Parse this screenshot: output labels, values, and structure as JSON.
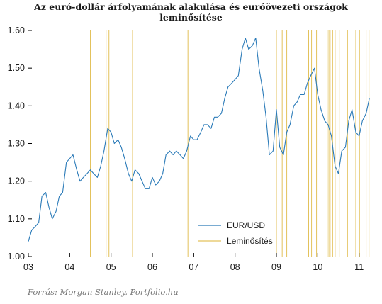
{
  "chart_data": {
    "type": "line",
    "title": "Az euró-dollár árfolyamának alakulása és euróövezeti országok leminősítése",
    "title_lines": [
      "Az euró-dollár árfolyamának alakulása és euróövezeti országok",
      "leminősítése"
    ],
    "source": "Forrás: Morgan Stanley, Portfolio.hu",
    "xlim": [
      2003.0,
      2011.4
    ],
    "ylim": [
      1.0,
      1.6
    ],
    "yticks": [
      "1.00",
      "1.10",
      "1.20",
      "1.30",
      "1.40",
      "1.50",
      "1.60"
    ],
    "ytick_values": [
      1.0,
      1.1,
      1.2,
      1.3,
      1.4,
      1.5,
      1.6
    ],
    "xticks": [
      "03",
      "04",
      "05",
      "06",
      "07",
      "08",
      "09",
      "10",
      "11"
    ],
    "xtick_values": [
      2003,
      2004,
      2005,
      2006,
      2007,
      2008,
      2009,
      2010,
      2011
    ],
    "grid": false,
    "legend_position": "bottom-center",
    "series": [
      {
        "name": "EUR/USD",
        "color": "#2a7ab8",
        "points": [
          [
            2003.0,
            1.04
          ],
          [
            2003.08,
            1.07
          ],
          [
            2003.17,
            1.08
          ],
          [
            2003.25,
            1.09
          ],
          [
            2003.33,
            1.16
          ],
          [
            2003.42,
            1.17
          ],
          [
            2003.5,
            1.13
          ],
          [
            2003.58,
            1.1
          ],
          [
            2003.67,
            1.12
          ],
          [
            2003.75,
            1.16
          ],
          [
            2003.83,
            1.17
          ],
          [
            2003.92,
            1.25
          ],
          [
            2004.0,
            1.26
          ],
          [
            2004.08,
            1.27
          ],
          [
            2004.17,
            1.23
          ],
          [
            2004.25,
            1.2
          ],
          [
            2004.33,
            1.21
          ],
          [
            2004.42,
            1.22
          ],
          [
            2004.5,
            1.23
          ],
          [
            2004.58,
            1.22
          ],
          [
            2004.67,
            1.21
          ],
          [
            2004.75,
            1.24
          ],
          [
            2004.83,
            1.28
          ],
          [
            2004.92,
            1.34
          ],
          [
            2005.0,
            1.33
          ],
          [
            2005.08,
            1.3
          ],
          [
            2005.17,
            1.31
          ],
          [
            2005.25,
            1.29
          ],
          [
            2005.33,
            1.26
          ],
          [
            2005.42,
            1.22
          ],
          [
            2005.5,
            1.2
          ],
          [
            2005.58,
            1.23
          ],
          [
            2005.67,
            1.22
          ],
          [
            2005.75,
            1.2
          ],
          [
            2005.83,
            1.18
          ],
          [
            2005.92,
            1.18
          ],
          [
            2006.0,
            1.21
          ],
          [
            2006.08,
            1.19
          ],
          [
            2006.17,
            1.2
          ],
          [
            2006.25,
            1.22
          ],
          [
            2006.33,
            1.27
          ],
          [
            2006.42,
            1.28
          ],
          [
            2006.5,
            1.27
          ],
          [
            2006.58,
            1.28
          ],
          [
            2006.67,
            1.27
          ],
          [
            2006.75,
            1.26
          ],
          [
            2006.83,
            1.28
          ],
          [
            2006.92,
            1.32
          ],
          [
            2007.0,
            1.31
          ],
          [
            2007.08,
            1.31
          ],
          [
            2007.17,
            1.33
          ],
          [
            2007.25,
            1.35
          ],
          [
            2007.33,
            1.35
          ],
          [
            2007.42,
            1.34
          ],
          [
            2007.5,
            1.37
          ],
          [
            2007.58,
            1.37
          ],
          [
            2007.67,
            1.38
          ],
          [
            2007.75,
            1.42
          ],
          [
            2007.83,
            1.45
          ],
          [
            2007.92,
            1.46
          ],
          [
            2008.0,
            1.47
          ],
          [
            2008.08,
            1.48
          ],
          [
            2008.17,
            1.55
          ],
          [
            2008.25,
            1.58
          ],
          [
            2008.33,
            1.55
          ],
          [
            2008.42,
            1.56
          ],
          [
            2008.5,
            1.58
          ],
          [
            2008.58,
            1.5
          ],
          [
            2008.67,
            1.44
          ],
          [
            2008.75,
            1.37
          ],
          [
            2008.83,
            1.27
          ],
          [
            2008.92,
            1.28
          ],
          [
            2009.0,
            1.39
          ],
          [
            2009.08,
            1.29
          ],
          [
            2009.17,
            1.27
          ],
          [
            2009.25,
            1.33
          ],
          [
            2009.33,
            1.35
          ],
          [
            2009.42,
            1.4
          ],
          [
            2009.5,
            1.41
          ],
          [
            2009.58,
            1.43
          ],
          [
            2009.67,
            1.43
          ],
          [
            2009.75,
            1.46
          ],
          [
            2009.83,
            1.48
          ],
          [
            2009.92,
            1.5
          ],
          [
            2010.0,
            1.43
          ],
          [
            2010.08,
            1.39
          ],
          [
            2010.17,
            1.36
          ],
          [
            2010.25,
            1.35
          ],
          [
            2010.33,
            1.32
          ],
          [
            2010.42,
            1.24
          ],
          [
            2010.5,
            1.22
          ],
          [
            2010.58,
            1.28
          ],
          [
            2010.67,
            1.29
          ],
          [
            2010.75,
            1.36
          ],
          [
            2010.83,
            1.39
          ],
          [
            2010.92,
            1.33
          ],
          [
            2011.0,
            1.32
          ],
          [
            2011.08,
            1.36
          ],
          [
            2011.17,
            1.38
          ],
          [
            2011.25,
            1.42
          ]
        ]
      }
    ],
    "downgrades": {
      "name": "Leminősítés",
      "color": "#e3c25c",
      "dates": [
        2004.5,
        2004.88,
        2004.95,
        2005.52,
        2006.86,
        2009.0,
        2009.06,
        2009.14,
        2009.25,
        2009.78,
        2009.85,
        2009.97,
        2010.23,
        2010.27,
        2010.3,
        2010.36,
        2010.42,
        2010.52,
        2010.72,
        2010.92,
        2011.01,
        2011.17,
        2011.24
      ]
    }
  }
}
